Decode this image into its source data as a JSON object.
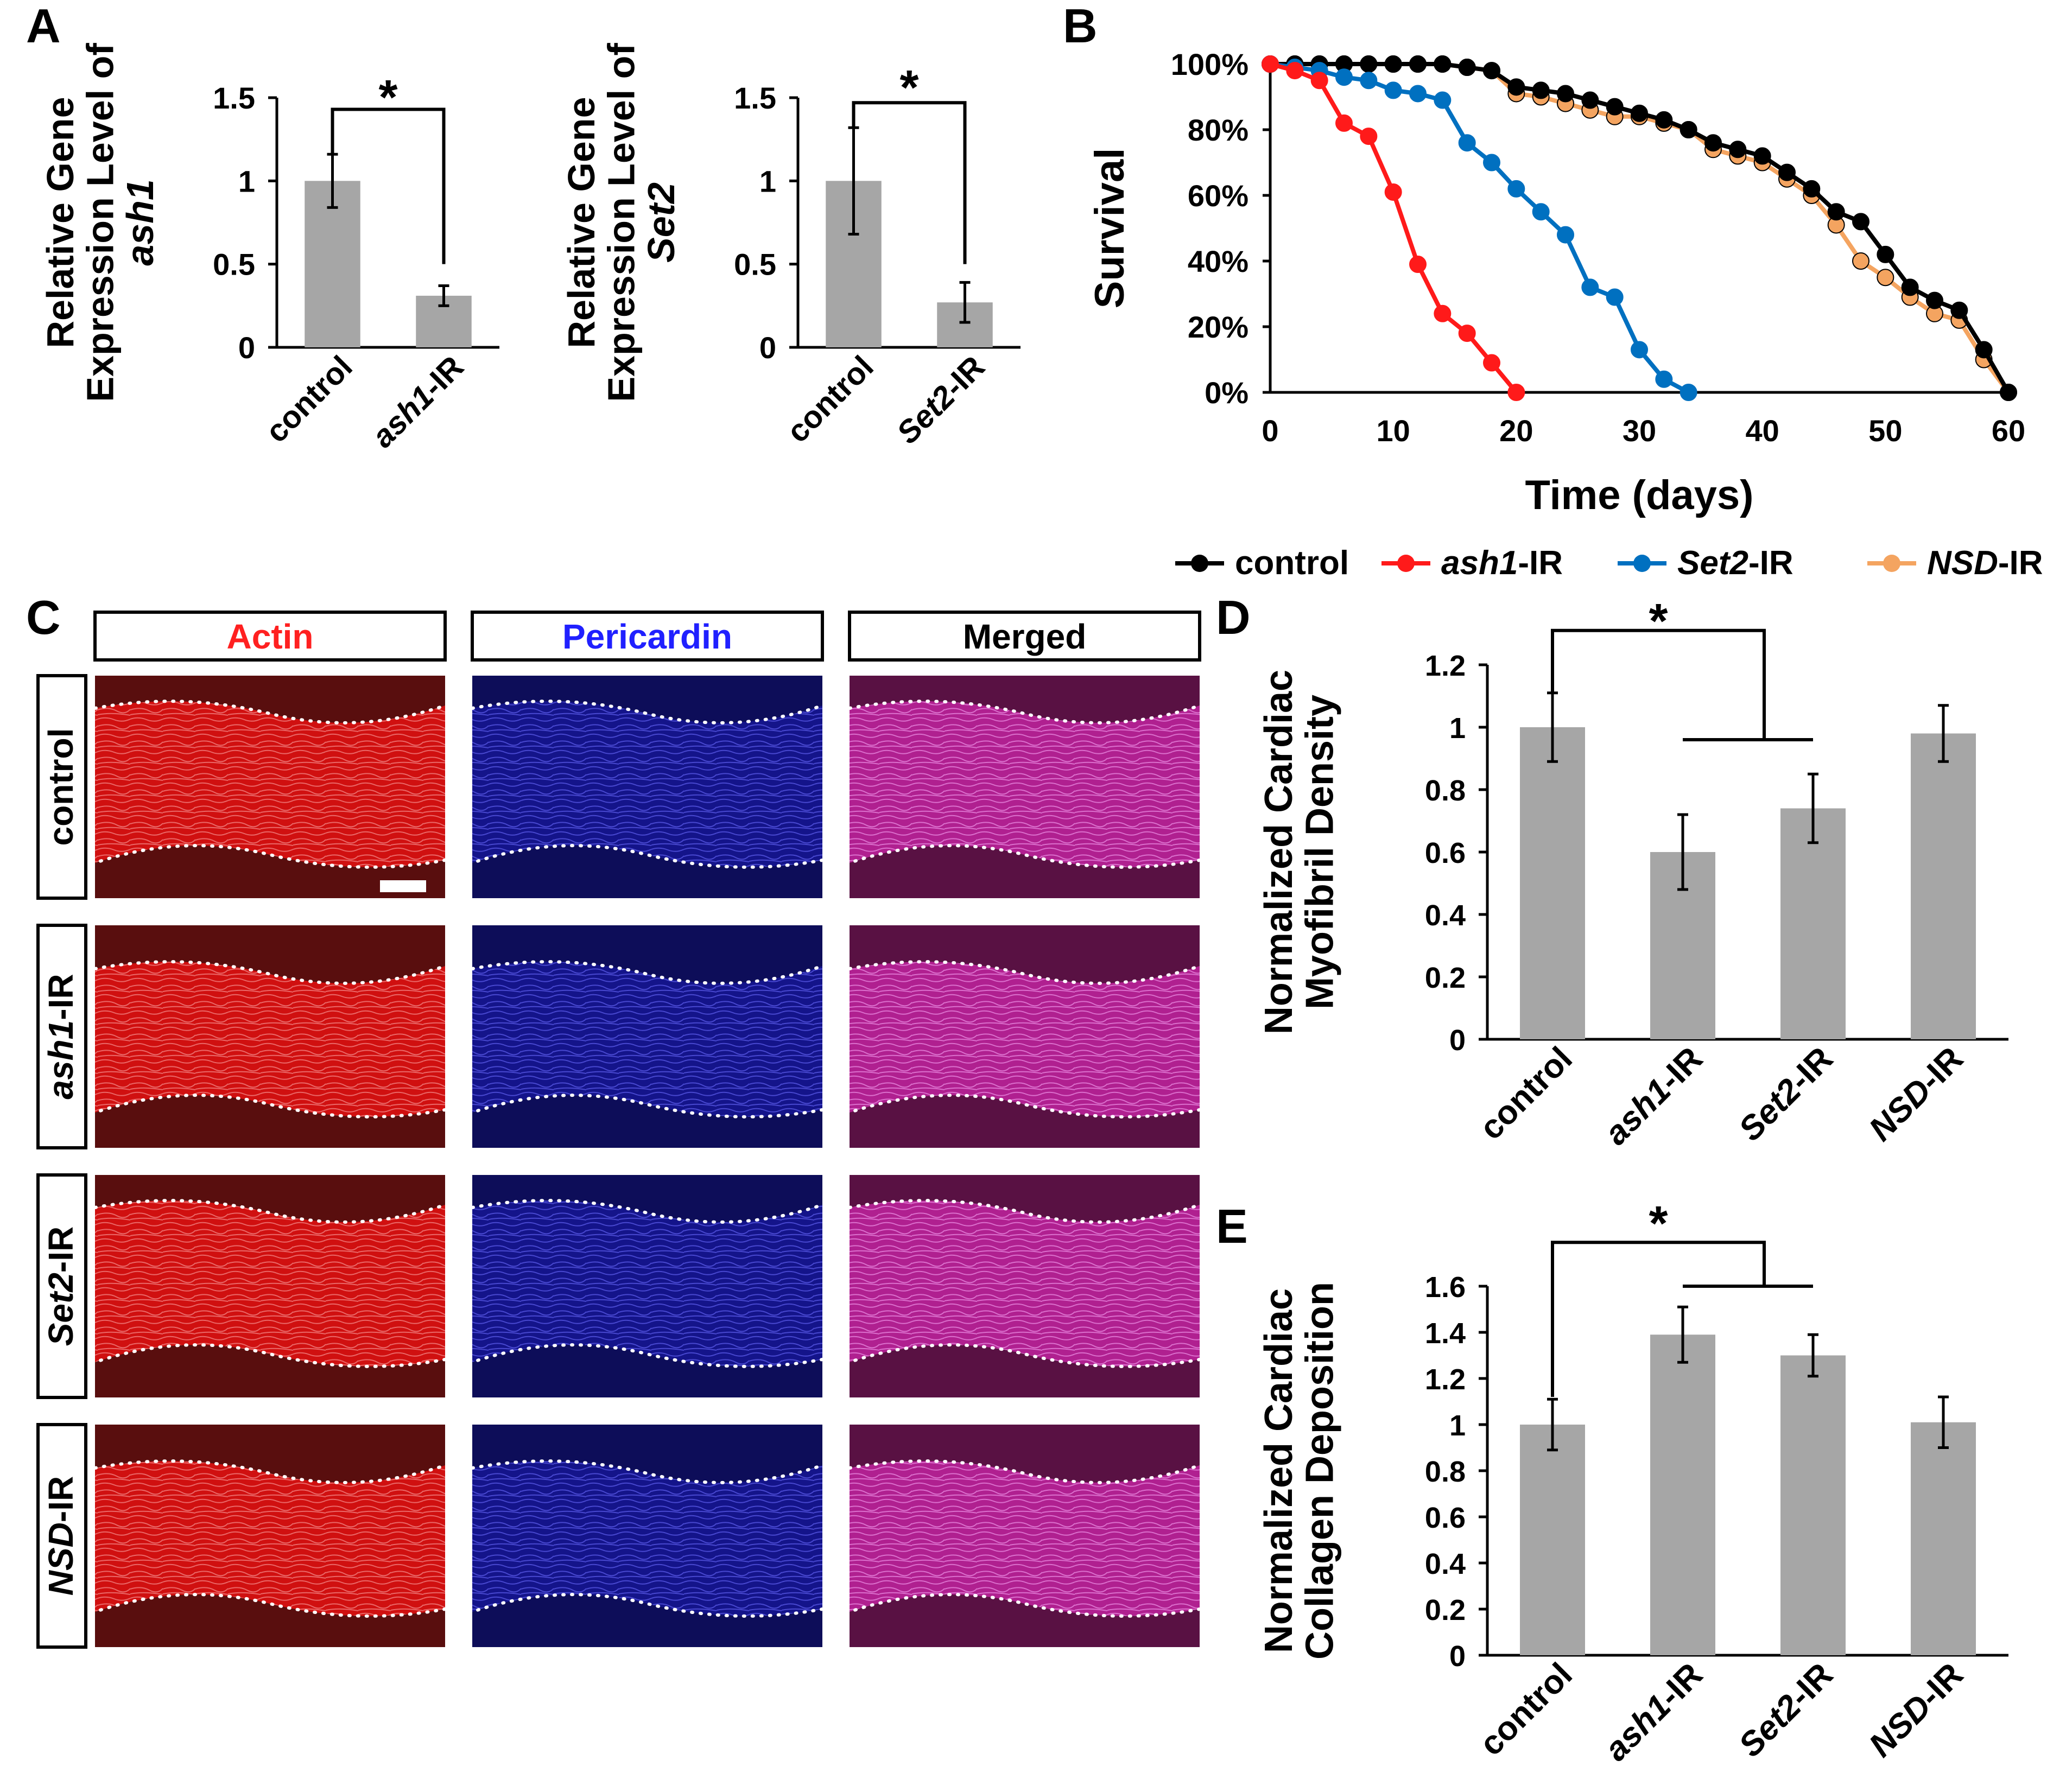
{
  "panel_letters": {
    "a": "A",
    "b": "B",
    "c": "C",
    "d": "D",
    "e": "E"
  },
  "colors": {
    "bar": "#a6a6a6",
    "control": "#000000",
    "ash1": "#ff1a1a",
    "set2": "#0070c0",
    "nsd": "#f4a460",
    "actin": "#ff2020",
    "pericardin": "#2020ff"
  },
  "significance": "*",
  "chart_data": [
    {
      "id": "A-left",
      "type": "bar",
      "ylabel_lines": [
        "Relative Gene",
        "Expression Level of",
        "ash1"
      ],
      "categories": [
        "control",
        "ash1-IR"
      ],
      "category_parts": [
        [
          {
            "t": "control",
            "i": false
          }
        ],
        [
          {
            "t": "ash1",
            "i": true
          },
          {
            "t": "-IR",
            "i": false
          }
        ]
      ],
      "values": [
        1.0,
        0.31
      ],
      "errors": [
        0.16,
        0.06
      ],
      "yticks": [
        "0",
        "0.5",
        "1",
        "1.5"
      ],
      "ylim": [
        0,
        1.5
      ]
    },
    {
      "id": "A-right",
      "type": "bar",
      "ylabel_lines": [
        "Relative Gene",
        "Expression Level of",
        "Set2"
      ],
      "categories": [
        "control",
        "Set2-IR"
      ],
      "category_parts": [
        [
          {
            "t": "control",
            "i": false
          }
        ],
        [
          {
            "t": "Set2",
            "i": true
          },
          {
            "t": "-IR",
            "i": false
          }
        ]
      ],
      "values": [
        1.0,
        0.27
      ],
      "errors": [
        0.32,
        0.12
      ],
      "yticks": [
        "0",
        "0.5",
        "1",
        "1.5"
      ],
      "ylim": [
        0,
        1.5
      ]
    },
    {
      "id": "B",
      "type": "line",
      "ylabel": "Survival",
      "xlabel": "Time (days)",
      "xticks": [
        "0",
        "10",
        "20",
        "30",
        "40",
        "50",
        "60"
      ],
      "yticks": [
        "0%",
        "20%",
        "40%",
        "60%",
        "80%",
        "100%"
      ],
      "xlim": [
        0,
        60
      ],
      "ylim": [
        0,
        100
      ],
      "series": [
        {
          "name": "control",
          "key": "control",
          "x": [
            0,
            2,
            4,
            6,
            8,
            10,
            12,
            14,
            16,
            18,
            20,
            22,
            24,
            26,
            28,
            30,
            32,
            34,
            36,
            38,
            40,
            42,
            44,
            46,
            48,
            50,
            52,
            54,
            56,
            58,
            60
          ],
          "y": [
            100,
            100,
            100,
            100,
            100,
            100,
            100,
            100,
            99,
            98,
            93,
            92,
            91,
            89,
            87,
            85,
            83,
            80,
            76,
            74,
            72,
            67,
            62,
            55,
            52,
            42,
            32,
            28,
            25,
            13,
            0
          ]
        },
        {
          "name": "ash1-IR",
          "key": "ash1",
          "x": [
            0,
            2,
            4,
            6,
            8,
            10,
            12,
            14,
            16,
            18,
            20
          ],
          "y": [
            100,
            98,
            95,
            82,
            78,
            61,
            39,
            24,
            18,
            9,
            0
          ]
        },
        {
          "name": "Set2-IR",
          "key": "set2",
          "x": [
            0,
            2,
            4,
            6,
            8,
            10,
            12,
            14,
            16,
            18,
            20,
            22,
            24,
            26,
            28,
            30,
            32,
            34
          ],
          "y": [
            100,
            99,
            98,
            96,
            95,
            92,
            91,
            89,
            76,
            70,
            62,
            55,
            48,
            32,
            29,
            13,
            4,
            0
          ]
        },
        {
          "name": "NSD-IR",
          "key": "nsd",
          "x": [
            0,
            2,
            4,
            6,
            8,
            10,
            12,
            14,
            16,
            18,
            20,
            22,
            24,
            26,
            28,
            30,
            32,
            34,
            36,
            38,
            40,
            42,
            44,
            46,
            48,
            50,
            52,
            54,
            56,
            58,
            60
          ],
          "y": [
            100,
            100,
            100,
            100,
            100,
            100,
            100,
            100,
            99,
            98,
            91,
            90,
            88,
            86,
            84,
            84,
            82,
            80,
            74,
            72,
            70,
            65,
            60,
            51,
            40,
            35,
            29,
            24,
            22,
            10,
            0
          ]
        }
      ],
      "legend": [
        {
          "key": "control",
          "parts": [
            {
              "t": "control",
              "i": false
            }
          ]
        },
        {
          "key": "ash1",
          "parts": [
            {
              "t": "ash1",
              "i": true
            },
            {
              "t": "-IR",
              "i": false
            }
          ]
        },
        {
          "key": "set2",
          "parts": [
            {
              "t": "Set2",
              "i": true
            },
            {
              "t": "-IR",
              "i": false
            }
          ]
        },
        {
          "key": "nsd",
          "parts": [
            {
              "t": "NSD",
              "i": true
            },
            {
              "t": "-IR",
              "i": false
            }
          ]
        }
      ],
      "legend_position": "bottom"
    },
    {
      "id": "D",
      "type": "bar",
      "ylabel_lines": [
        "Normalized Cardiac",
        "Myofibril Density"
      ],
      "categories": [
        "control",
        "ash1-IR",
        "Set2-IR",
        "NSD-IR"
      ],
      "category_parts": [
        [
          {
            "t": "control",
            "i": false
          }
        ],
        [
          {
            "t": "ash1",
            "i": true
          },
          {
            "t": "-IR",
            "i": false
          }
        ],
        [
          {
            "t": "Set2",
            "i": true
          },
          {
            "t": "-IR",
            "i": false
          }
        ],
        [
          {
            "t": "NSD",
            "i": true
          },
          {
            "t": "-IR",
            "i": false
          }
        ]
      ],
      "values": [
        1.0,
        0.6,
        0.74,
        0.98
      ],
      "errors": [
        0.11,
        0.12,
        0.11,
        0.09
      ],
      "yticks": [
        "0",
        "0.2",
        "0.4",
        "0.6",
        "0.8",
        "1",
        "1.2"
      ],
      "ylim": [
        0,
        1.2
      ]
    },
    {
      "id": "E",
      "type": "bar",
      "ylabel_lines": [
        "Normalized Cardiac",
        "Collagen Deposition"
      ],
      "categories": [
        "control",
        "ash1-IR",
        "Set2-IR",
        "NSD-IR"
      ],
      "category_parts": [
        [
          {
            "t": "control",
            "i": false
          }
        ],
        [
          {
            "t": "ash1",
            "i": true
          },
          {
            "t": "-IR",
            "i": false
          }
        ],
        [
          {
            "t": "Set2",
            "i": true
          },
          {
            "t": "-IR",
            "i": false
          }
        ],
        [
          {
            "t": "NSD",
            "i": true
          },
          {
            "t": "-IR",
            "i": false
          }
        ]
      ],
      "values": [
        1.0,
        1.39,
        1.3,
        1.01
      ],
      "errors": [
        0.11,
        0.12,
        0.09,
        0.11
      ],
      "yticks": [
        "0",
        "0.2",
        "0.4",
        "0.6",
        "0.8",
        "1",
        "1.2",
        "1.4",
        "1.6"
      ],
      "ylim": [
        0,
        1.6
      ]
    }
  ],
  "microscopy": {
    "columns": [
      "Actin",
      "Pericardin",
      "Merged"
    ],
    "rows": [
      [
        {
          "t": "control",
          "i": false
        }
      ],
      [
        {
          "t": "ash1",
          "i": true
        },
        {
          "t": "-IR",
          "i": false
        }
      ],
      [
        {
          "t": "Set2",
          "i": true
        },
        {
          "t": "-IR",
          "i": false
        }
      ],
      [
        {
          "t": "NSD",
          "i": true
        },
        {
          "t": "-IR",
          "i": false
        }
      ]
    ]
  }
}
